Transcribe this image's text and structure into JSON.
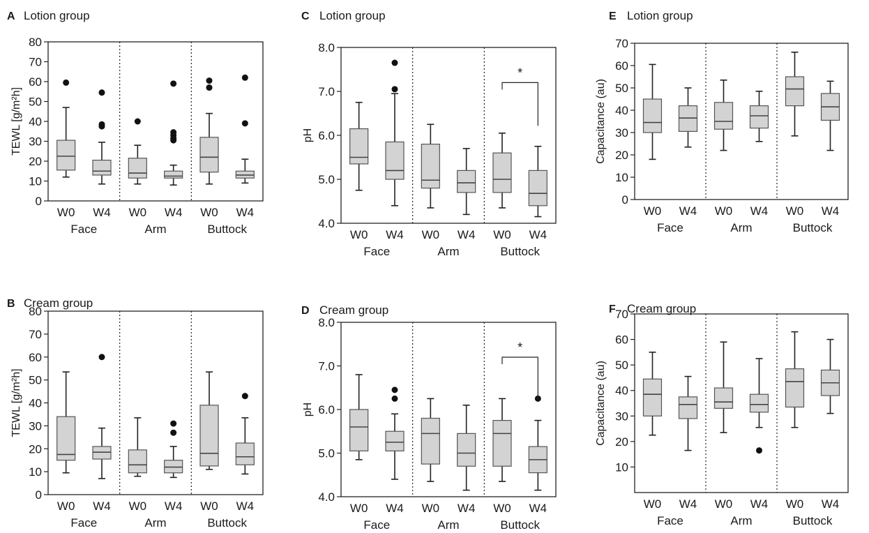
{
  "style": {
    "box_fill": "#d3d3d3",
    "stroke": "#222222",
    "outlier": "#111111"
  },
  "chart_data": [
    {
      "type": "box",
      "panel_letter": "A",
      "title": "Lotion group",
      "ylabel": "TEWL [g/m²h]",
      "ylim": [
        0,
        80
      ],
      "yticks": [
        0,
        10,
        20,
        30,
        40,
        50,
        60,
        70,
        80
      ],
      "ytick_labels": [
        "0",
        "10",
        "20",
        "30",
        "40",
        "50",
        "60",
        "70",
        "80"
      ],
      "groups": [
        "Face",
        "Arm",
        "Buttock"
      ],
      "categories": [
        "W0",
        "W4",
        "W0",
        "W4",
        "W0",
        "W4"
      ],
      "boxes": [
        {
          "whislo": 12,
          "q1": 15.5,
          "med": 22.5,
          "q3": 30.5,
          "whishi": 47,
          "fliers": [
            59.5
          ]
        },
        {
          "whislo": 8.5,
          "q1": 13,
          "med": 15,
          "q3": 20.5,
          "whishi": 29.5,
          "fliers": [
            37.5,
            38.5,
            54.5
          ]
        },
        {
          "whislo": 8.5,
          "q1": 11.5,
          "med": 14,
          "q3": 21.5,
          "whishi": 28,
          "fliers": [
            40
          ]
        },
        {
          "whislo": 8,
          "q1": 11.5,
          "med": 12.5,
          "q3": 15,
          "whishi": 18,
          "fliers": [
            30.5,
            31.5,
            33,
            34.5,
            59
          ]
        },
        {
          "whislo": 8.5,
          "q1": 14.5,
          "med": 22,
          "q3": 32,
          "whishi": 44,
          "fliers": [
            57,
            60.5
          ]
        },
        {
          "whislo": 9,
          "q1": 11.5,
          "med": 13,
          "q3": 15,
          "whishi": 21,
          "fliers": [
            39,
            62
          ]
        }
      ],
      "annotations": []
    },
    {
      "type": "box",
      "panel_letter": "B",
      "title": "Cream group",
      "ylabel": "TEWL [g/m²h]",
      "ylim": [
        0,
        80
      ],
      "yticks": [
        0,
        10,
        20,
        30,
        40,
        50,
        60,
        70,
        80
      ],
      "ytick_labels": [
        "0",
        "10",
        "20",
        "30",
        "40",
        "50",
        "60",
        "70",
        "80"
      ],
      "groups": [
        "Face",
        "Arm",
        "Buttock"
      ],
      "categories": [
        "W0",
        "W4",
        "W0",
        "W4",
        "W0",
        "W4"
      ],
      "boxes": [
        {
          "whislo": 9.5,
          "q1": 15,
          "med": 17.5,
          "q3": 34,
          "whishi": 53.5,
          "fliers": []
        },
        {
          "whislo": 7,
          "q1": 15.5,
          "med": 18.5,
          "q3": 21,
          "whishi": 29,
          "fliers": [
            60
          ]
        },
        {
          "whislo": 8,
          "q1": 9.5,
          "med": 13,
          "q3": 19.5,
          "whishi": 33.5,
          "fliers": []
        },
        {
          "whislo": 7.5,
          "q1": 9.5,
          "med": 12,
          "q3": 15,
          "whishi": 21,
          "fliers": [
            27,
            31
          ]
        },
        {
          "whislo": 11,
          "q1": 12.5,
          "med": 18,
          "q3": 39,
          "whishi": 53.5,
          "fliers": []
        },
        {
          "whislo": 9,
          "q1": 13,
          "med": 16.5,
          "q3": 22.5,
          "whishi": 33.5,
          "fliers": [
            43
          ]
        }
      ],
      "annotations": []
    },
    {
      "type": "box",
      "panel_letter": "C",
      "title": "Lotion group",
      "ylabel": "pH",
      "ylim": [
        4.0,
        8.0
      ],
      "yticks": [
        4,
        5,
        6,
        7,
        8
      ],
      "ytick_labels": [
        "4.0",
        "5.0",
        "6.0",
        "7.0",
        "8.0"
      ],
      "groups": [
        "Face",
        "Arm",
        "Buttock"
      ],
      "categories": [
        "W0",
        "W4",
        "W0",
        "W4",
        "W0",
        "W4"
      ],
      "boxes": [
        {
          "whislo": 4.75,
          "q1": 5.35,
          "med": 5.5,
          "q3": 6.15,
          "whishi": 6.75,
          "fliers": []
        },
        {
          "whislo": 4.4,
          "q1": 5.0,
          "med": 5.2,
          "q3": 5.85,
          "whishi": 6.95,
          "fliers": [
            7.05,
            7.65
          ]
        },
        {
          "whislo": 4.35,
          "q1": 4.8,
          "med": 4.98,
          "q3": 5.8,
          "whishi": 6.25,
          "fliers": []
        },
        {
          "whislo": 4.2,
          "q1": 4.7,
          "med": 4.92,
          "q3": 5.2,
          "whishi": 5.7,
          "fliers": []
        },
        {
          "whislo": 4.35,
          "q1": 4.7,
          "med": 5.0,
          "q3": 5.6,
          "whishi": 6.05,
          "fliers": []
        },
        {
          "whislo": 4.15,
          "q1": 4.4,
          "med": 4.68,
          "q3": 5.2,
          "whishi": 5.75,
          "fliers": []
        }
      ],
      "annotations": [
        {
          "text": "*",
          "from": 4,
          "to": 5,
          "y": 7.2
        }
      ]
    },
    {
      "type": "box",
      "panel_letter": "D",
      "title": "Cream group",
      "ylabel": "pH",
      "ylim": [
        4.0,
        8.0
      ],
      "yticks": [
        4,
        5,
        6,
        7,
        8
      ],
      "ytick_labels": [
        "4.0",
        "5.0",
        "6.0",
        "7.0",
        "8.0"
      ],
      "groups": [
        "Face",
        "Arm",
        "Buttock"
      ],
      "categories": [
        "W0",
        "W4",
        "W0",
        "W4",
        "W0",
        "W4"
      ],
      "boxes": [
        {
          "whislo": 4.85,
          "q1": 5.05,
          "med": 5.6,
          "q3": 6.0,
          "whishi": 6.8,
          "fliers": []
        },
        {
          "whislo": 4.4,
          "q1": 5.05,
          "med": 5.25,
          "q3": 5.5,
          "whishi": 5.9,
          "fliers": [
            6.25,
            6.45
          ]
        },
        {
          "whislo": 4.35,
          "q1": 4.75,
          "med": 5.45,
          "q3": 5.8,
          "whishi": 6.25,
          "fliers": []
        },
        {
          "whislo": 4.15,
          "q1": 4.7,
          "med": 5.0,
          "q3": 5.45,
          "whishi": 6.1,
          "fliers": []
        },
        {
          "whislo": 4.35,
          "q1": 4.7,
          "med": 5.45,
          "q3": 5.75,
          "whishi": 6.25,
          "fliers": []
        },
        {
          "whislo": 4.15,
          "q1": 4.55,
          "med": 4.85,
          "q3": 5.15,
          "whishi": 5.75,
          "fliers": [
            6.25
          ]
        }
      ],
      "annotations": [
        {
          "text": "*",
          "from": 4,
          "to": 5,
          "y": 7.2
        }
      ]
    },
    {
      "type": "box",
      "panel_letter": "E",
      "title": "Lotion group",
      "ylabel": "Capacitance (au)",
      "ylim": [
        0,
        70
      ],
      "yticks": [
        0,
        10,
        20,
        30,
        40,
        50,
        60,
        70
      ],
      "ytick_labels": [
        "0",
        "10",
        "20",
        "30",
        "40",
        "50",
        "60",
        "70"
      ],
      "groups": [
        "Face",
        "Arm",
        "Buttock"
      ],
      "categories": [
        "W0",
        "W4",
        "W0",
        "W4",
        "W0",
        "W4"
      ],
      "boxes": [
        {
          "whislo": 18,
          "q1": 30,
          "med": 34.5,
          "q3": 45,
          "whishi": 60.5,
          "fliers": []
        },
        {
          "whislo": 23.5,
          "q1": 30.5,
          "med": 36.5,
          "q3": 42,
          "whishi": 50,
          "fliers": []
        },
        {
          "whislo": 22,
          "q1": 31.5,
          "med": 35,
          "q3": 43.5,
          "whishi": 53.5,
          "fliers": []
        },
        {
          "whislo": 26,
          "q1": 32,
          "med": 37.5,
          "q3": 42,
          "whishi": 48.5,
          "fliers": []
        },
        {
          "whislo": 28.5,
          "q1": 42,
          "med": 49.5,
          "q3": 55,
          "whishi": 66,
          "fliers": []
        },
        {
          "whislo": 22,
          "q1": 35.5,
          "med": 41.5,
          "q3": 47.5,
          "whishi": 53,
          "fliers": []
        }
      ],
      "annotations": []
    },
    {
      "type": "box",
      "panel_letter": "F",
      "title": "Cream group",
      "ylabel": "Capacitance (au)",
      "ylim": [
        0,
        70
      ],
      "yticks": [
        10,
        20,
        30,
        40,
        50,
        60,
        70
      ],
      "ytick_labels": [
        "10",
        "20",
        "30",
        "40",
        "50",
        "60",
        "70"
      ],
      "groups": [
        "Face",
        "Arm",
        "Buttock"
      ],
      "categories": [
        "W0",
        "W4",
        "W0",
        "W4",
        "W0",
        "W4"
      ],
      "boxes": [
        {
          "whislo": 22.5,
          "q1": 30,
          "med": 38.5,
          "q3": 44.5,
          "whishi": 55,
          "fliers": []
        },
        {
          "whislo": 16.5,
          "q1": 29,
          "med": 34.5,
          "q3": 37.5,
          "whishi": 45.5,
          "fliers": []
        },
        {
          "whislo": 23.5,
          "q1": 33,
          "med": 35.5,
          "q3": 41,
          "whishi": 59,
          "fliers": []
        },
        {
          "whislo": 25.5,
          "q1": 31.5,
          "med": 34.5,
          "q3": 38.5,
          "whishi": 52.5,
          "fliers": [
            16.5
          ]
        },
        {
          "whislo": 25.5,
          "q1": 33.5,
          "med": 43.5,
          "q3": 48.5,
          "whishi": 63,
          "fliers": []
        },
        {
          "whislo": 31,
          "q1": 38,
          "med": 43,
          "q3": 48,
          "whishi": 60,
          "fliers": []
        }
      ],
      "annotations": []
    }
  ]
}
